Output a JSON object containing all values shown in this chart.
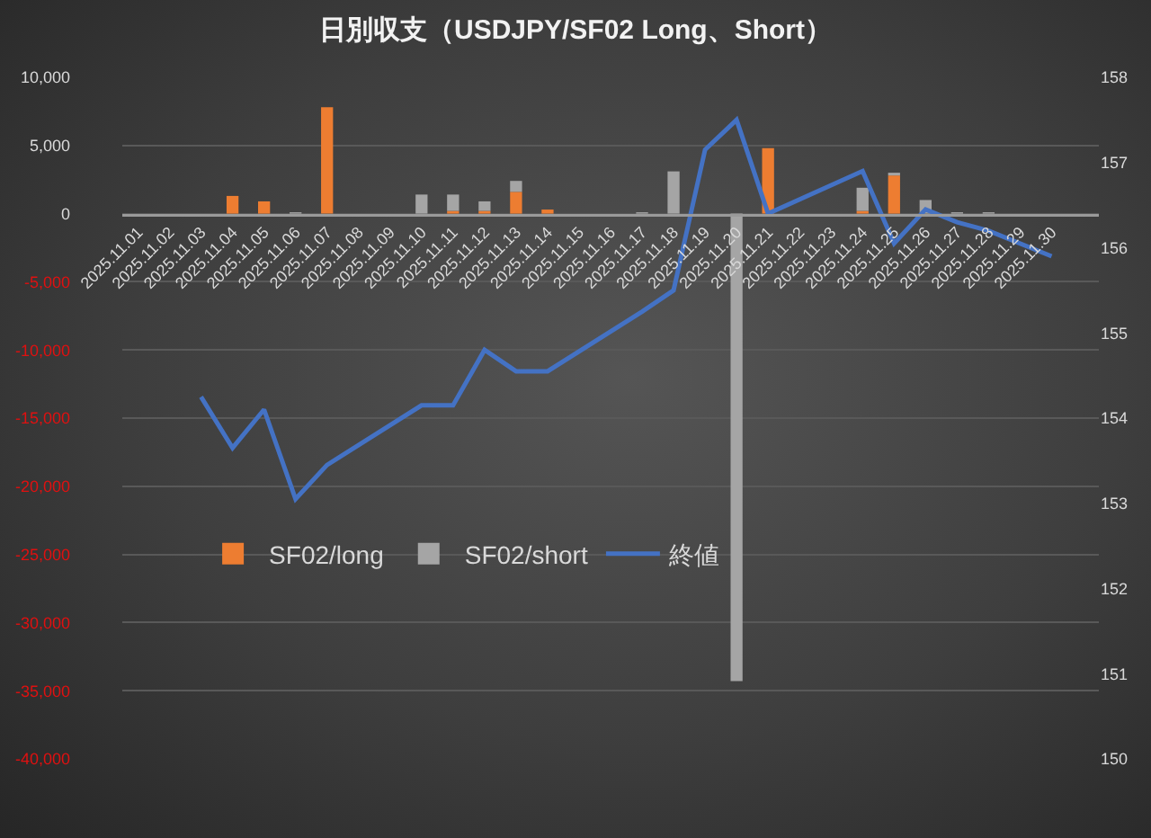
{
  "chart_data": {
    "type": "bar",
    "title": "日別収支（USDJPY/SF02 Long、Short）",
    "categories": [
      "2025.11.01",
      "2025.11.02",
      "2025.11.03",
      "2025.11.04",
      "2025.11.05",
      "2025.11.06",
      "2025.11.07",
      "2025.11.08",
      "2025.11.09",
      "2025.11.10",
      "2025.11.11",
      "2025.11.12",
      "2025.11.13",
      "2025.11.14",
      "2025.11.15",
      "2025.11.16",
      "2025.11.17",
      "2025.11.18",
      "2025.11.19",
      "2025.11.20",
      "2025.11.21",
      "2025.11.22",
      "2025.11.23",
      "2025.11.24",
      "2025.11.25",
      "2025.11.26",
      "2025.11.27",
      "2025.11.28",
      "2025.11.29",
      "2025.11.30",
      null
    ],
    "stacked": true,
    "series": [
      {
        "name": "SF02/long",
        "color": "#ed7d31",
        "values": [
          null,
          null,
          null,
          1300,
          900,
          null,
          7800,
          null,
          null,
          null,
          200,
          200,
          1600,
          300,
          null,
          null,
          null,
          null,
          null,
          null,
          4800,
          null,
          null,
          200,
          2800,
          null,
          null,
          null,
          null,
          null,
          null
        ]
      },
      {
        "name": "SF02/short",
        "color": "#a5a5a5",
        "values": [
          null,
          null,
          null,
          null,
          null,
          100,
          null,
          null,
          null,
          1400,
          1200,
          700,
          800,
          null,
          null,
          null,
          100,
          3100,
          null,
          -34300,
          null,
          null,
          null,
          1700,
          200,
          1000,
          100,
          100,
          null,
          null,
          null
        ]
      },
      {
        "name": "終値",
        "type": "line",
        "axis": "y2",
        "color": "#4472c4",
        "values": [
          null,
          null,
          154.25,
          153.65,
          154.1,
          153.05,
          153.45,
          null,
          null,
          154.15,
          154.15,
          154.8,
          154.55,
          154.55,
          null,
          null,
          155.25,
          155.5,
          157.15,
          157.5,
          156.4,
          null,
          null,
          156.9,
          156.05,
          156.45,
          156.3,
          156.2,
          null,
          155.9,
          null
        ]
      }
    ],
    "ylim": [
      -40000,
      10000
    ],
    "yticks": [
      {
        "value": 10000,
        "label": "10,000"
      },
      {
        "value": 5000,
        "label": "5,000"
      },
      0,
      {
        "value": -5000,
        "label": "-5,000"
      },
      {
        "value": -10000,
        "label": "-10,000"
      },
      {
        "value": -15000,
        "label": "-15,000"
      },
      {
        "value": -20000,
        "label": "-20,000"
      },
      {
        "value": -25000,
        "label": "-25,000"
      },
      {
        "value": -30000,
        "label": "-30,000"
      },
      {
        "value": -35000,
        "label": "-35,000"
      },
      {
        "value": -40000,
        "label": "-40,000"
      }
    ],
    "y2lim": [
      150,
      158
    ],
    "y2ticks": [
      150,
      151,
      152,
      153,
      154,
      155,
      156,
      157,
      158
    ],
    "grid": "y",
    "legend": "center"
  }
}
